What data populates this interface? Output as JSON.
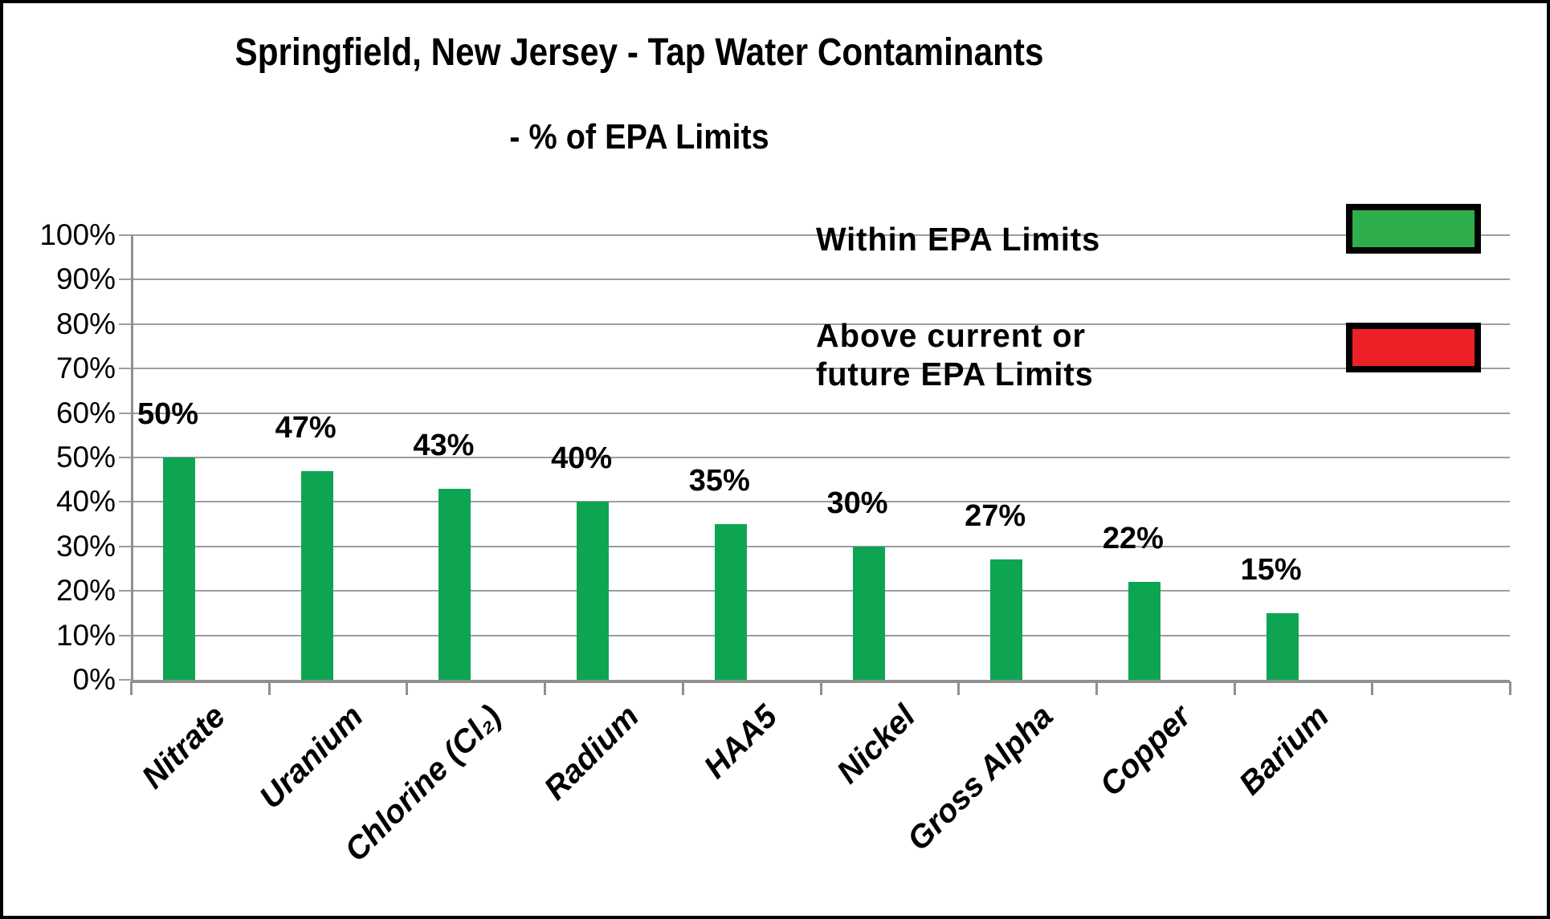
{
  "title": "Springfield, New Jersey - Tap Water Contaminants",
  "subtitle": "- % of EPA Limits",
  "legend": {
    "items": [
      {
        "label": "Within EPA Limits",
        "color": "#2fae4d"
      },
      {
        "label": "Above current or\nfuture EPA Limits",
        "color": "#ec2127"
      }
    ]
  },
  "chart_data": {
    "type": "bar",
    "title": "Springfield, New Jersey - Tap Water Contaminants - % of EPA Limits",
    "categories": [
      "Nitrate",
      "Uranium",
      "Chlorine (Cl₂)",
      "Radium",
      "HAA5",
      "Nickel",
      "Gross Alpha",
      "Copper",
      "Barium"
    ],
    "values": [
      50,
      47,
      43,
      40,
      35,
      30,
      27,
      22,
      15
    ],
    "data_labels": [
      "50%",
      "47%",
      "43%",
      "40%",
      "35%",
      "30%",
      "27%",
      "22%",
      "15%"
    ],
    "bar_color": "#0ea552",
    "xlabel": "",
    "ylabel": "",
    "ylim": [
      0,
      100
    ],
    "y_ticks": [
      "0%",
      "10%",
      "20%",
      "30%",
      "40%",
      "50%",
      "60%",
      "70%",
      "80%",
      "90%",
      "100%"
    ],
    "grid": true,
    "gridline_color": "#9d9d9d",
    "legend_position": "top-right",
    "extra_right_slots": 1
  }
}
